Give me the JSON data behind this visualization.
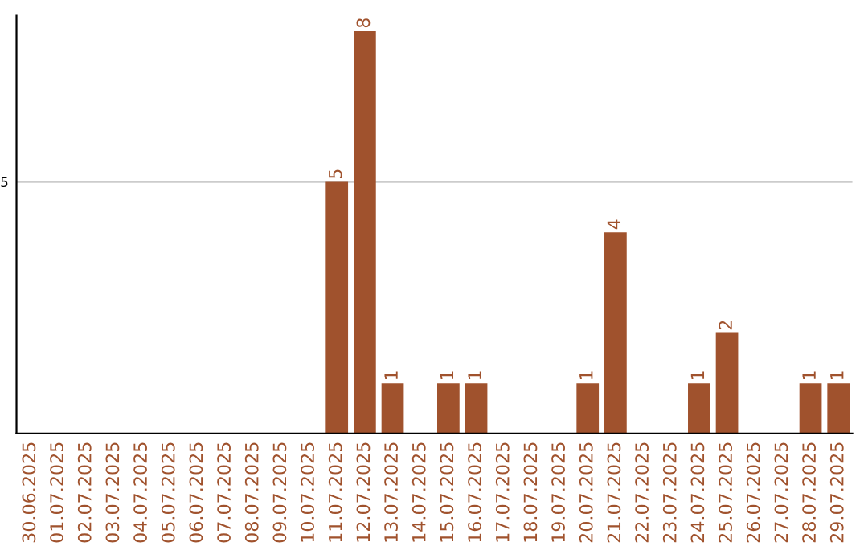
{
  "chart_data": {
    "type": "bar",
    "categories": [
      "30.06.2025",
      "01.07.2025",
      "02.07.2025",
      "03.07.2025",
      "04.07.2025",
      "05.07.2025",
      "06.07.2025",
      "07.07.2025",
      "08.07.2025",
      "09.07.2025",
      "10.07.2025",
      "11.07.2025",
      "12.07.2025",
      "13.07.2025",
      "14.07.2025",
      "15.07.2025",
      "16.07.2025",
      "17.07.2025",
      "18.07.2025",
      "19.07.2025",
      "20.07.2025",
      "21.07.2025",
      "22.07.2025",
      "23.07.2025",
      "24.07.2025",
      "25.07.2025",
      "26.07.2025",
      "27.07.2025",
      "28.07.2025",
      "29.07.2025"
    ],
    "values": [
      0,
      0,
      0,
      0,
      0,
      0,
      0,
      0,
      0,
      0,
      0,
      5,
      8,
      1,
      0,
      1,
      1,
      0,
      0,
      0,
      1,
      4,
      0,
      0,
      1,
      2,
      0,
      0,
      1,
      1
    ],
    "value_labels": [
      null,
      null,
      null,
      null,
      null,
      null,
      null,
      null,
      null,
      null,
      null,
      "5",
      "8",
      "1",
      null,
      "1",
      "1",
      null,
      null,
      null,
      "1",
      "4",
      null,
      null,
      "1",
      "2",
      null,
      null,
      "1",
      "1"
    ],
    "color": "#a0522d",
    "ylim": [
      0,
      8.3
    ],
    "yticks": [
      5
    ],
    "grid": "y"
  }
}
